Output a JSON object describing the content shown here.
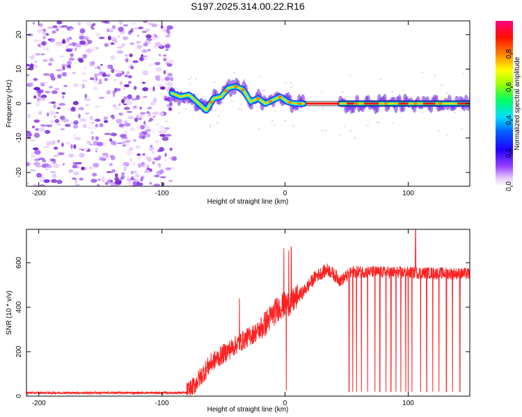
{
  "chart_data": [
    {
      "type": "heatmap",
      "title": "S197.2025.314.00.22.R16",
      "xlabel": "Height of straight line (km)",
      "ylabel": "Frequency (Hz)",
      "xlim": [
        -210,
        150
      ],
      "ylim": [
        -24,
        24
      ],
      "xticks": [
        -200,
        -100,
        0,
        100
      ],
      "yticks": [
        -20,
        -10,
        0,
        10,
        20
      ],
      "noise_region_x": [
        -210,
        -90
      ],
      "ridge": {
        "x": [
          -92,
          -85,
          -78,
          -70,
          -64,
          -58,
          -52,
          -46,
          -40,
          -34,
          -28,
          -22,
          -16,
          -10,
          -4,
          2,
          8,
          15,
          150
        ],
        "freq": [
          3,
          2,
          2.5,
          0,
          -2,
          1.5,
          2,
          4.5,
          5,
          4,
          0.5,
          1.5,
          0,
          1,
          2,
          0.5,
          0,
          0,
          0
        ]
      },
      "ridge_segments": [
        [
          -92,
          15
        ],
        [
          45,
          150
        ]
      ],
      "colorbar": {
        "label": "Normalized spectral amplitude",
        "ticks": [
          0.0,
          0.2,
          0.4,
          0.6,
          0.8
        ],
        "tick_labels": [
          "0.0",
          "0.2",
          "0.4",
          "0.6",
          "0.8"
        ],
        "colors": [
          "#ffffff",
          "#e0b0ff",
          "#8000ff",
          "#0000ff",
          "#00ffff",
          "#00ff00",
          "#ffff00",
          "#ff8000",
          "#ff0000",
          "#ff0080"
        ]
      }
    },
    {
      "type": "line",
      "xlabel": "Height of straight line (km)",
      "ylabel": "SNR (10 * v/v)",
      "xlim": [
        -210,
        150
      ],
      "ylim": [
        0,
        750
      ],
      "xticks": [
        -200,
        -100,
        0,
        100
      ],
      "yticks": [
        0,
        200,
        400,
        600
      ],
      "color": "#ff2020",
      "trend": {
        "x": [
          -210,
          -80,
          -75,
          -60,
          -40,
          -20,
          -5,
          5,
          15,
          25,
          35,
          45,
          55,
          150
        ],
        "y": [
          15,
          15,
          40,
          150,
          230,
          300,
          400,
          420,
          470,
          540,
          570,
          520,
          560,
          550
        ]
      },
      "spikes": [
        {
          "x": -37,
          "y": 440
        },
        {
          "x": -1,
          "y": 665
        },
        {
          "x": 1,
          "y": 25
        },
        {
          "x": 3,
          "y": 655
        },
        {
          "x": 5,
          "y": 670
        },
        {
          "x": 106,
          "y": 750
        }
      ],
      "dropouts_x": [
        52,
        55,
        58,
        62,
        67,
        73,
        77,
        82,
        86,
        90,
        94,
        98,
        100,
        103,
        110,
        115,
        120,
        125,
        131,
        136,
        142
      ]
    }
  ]
}
